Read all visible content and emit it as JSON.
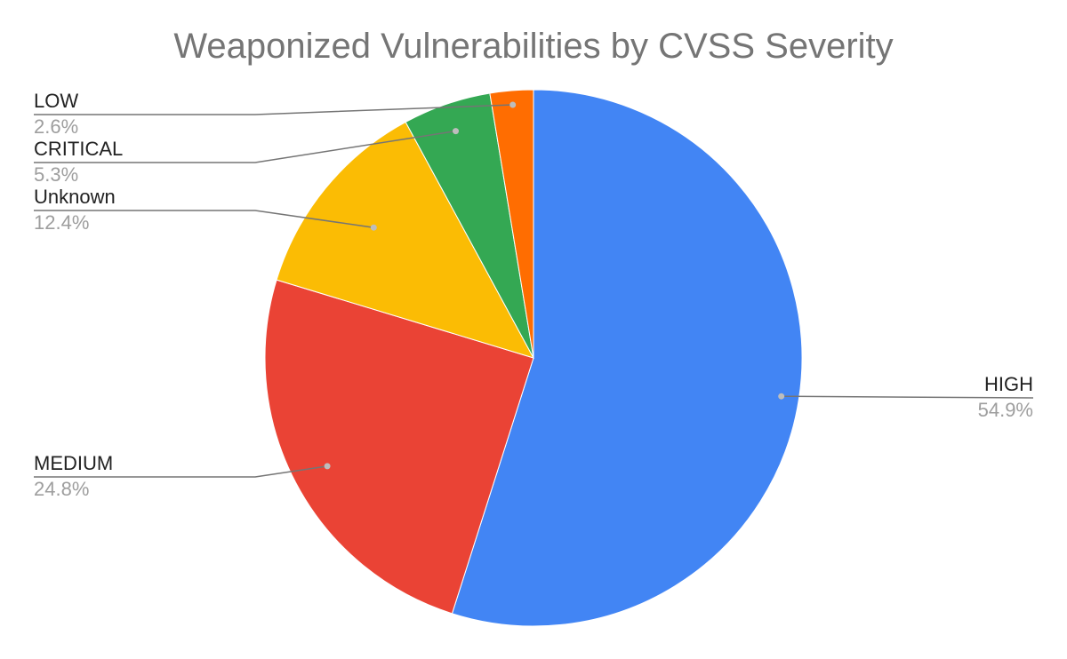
{
  "chart_data": {
    "type": "pie",
    "title": "Weaponized Vulnerabilities by CVSS Severity",
    "slices": [
      {
        "label": "HIGH",
        "value": 54.9,
        "display": "54.9%",
        "color": "#4285f4"
      },
      {
        "label": "MEDIUM",
        "value": 24.8,
        "display": "24.8%",
        "color": "#ea4335"
      },
      {
        "label": "Unknown",
        "value": 12.4,
        "display": "12.4%",
        "color": "#fbbc04"
      },
      {
        "label": "CRITICAL",
        "value": 5.3,
        "display": "5.3%",
        "color": "#34a853"
      },
      {
        "label": "LOW",
        "value": 2.6,
        "display": "2.6%",
        "color": "#ff6d01"
      }
    ],
    "start_angle": "12 o'clock",
    "direction": "clockwise",
    "legend": "none",
    "labels": "outside with leader lines"
  }
}
